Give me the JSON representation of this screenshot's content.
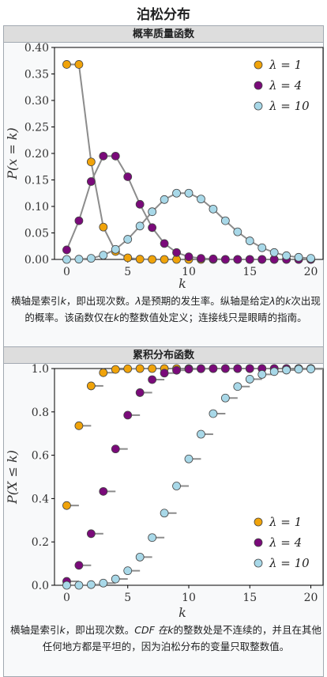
{
  "page": {
    "title": "泊松分布"
  },
  "pmf": {
    "header": "概率质量函数",
    "caption": [
      "横轴是索引",
      "k",
      "，即出现次数。",
      "λ",
      "是预期的发生率。纵轴是给定",
      "λ",
      "的",
      "k",
      "次出现的概率。该函数仅在",
      "k",
      "的整数值处定义；连接线只是眼睛的指南。"
    ]
  },
  "cdf": {
    "header": "累积分布函数",
    "caption": [
      "横轴是索引",
      "k",
      "，即出现次数。",
      "CDF 在",
      "k",
      "的整数处是不连续的，并且在其他任何地方都是平坦的，因为泊松分布的变量只取整数值。"
    ]
  },
  "chart_data": [
    {
      "type": "line",
      "ylabel": "P(x = k)",
      "xlabel": "k",
      "xlim": [
        -1,
        21
      ],
      "ylim": [
        0,
        0.4
      ],
      "xticks": [
        "0",
        "5",
        "10",
        "15",
        "20"
      ],
      "yticks": [
        "0.00",
        "0.05",
        "0.10",
        "0.15",
        "0.20",
        "0.25",
        "0.30",
        "0.35",
        "0.40"
      ],
      "legend": "top-right",
      "series": [
        {
          "name": "λ = 1",
          "color": "#f0a30a",
          "x": [
            0,
            1,
            2,
            3,
            4,
            5,
            6,
            7,
            8,
            9,
            10,
            11,
            12,
            13,
            14,
            15,
            16,
            17,
            18,
            19,
            20
          ],
          "values": [
            0.368,
            0.368,
            0.184,
            0.061,
            0.015,
            0.003,
            0.0005,
            0,
            0,
            0,
            0,
            0,
            0,
            0,
            0,
            0,
            0,
            0,
            0,
            0,
            0
          ]
        },
        {
          "name": "λ = 4",
          "color": "#7a0a7a",
          "x": [
            0,
            1,
            2,
            3,
            4,
            5,
            6,
            7,
            8,
            9,
            10,
            11,
            12,
            13,
            14,
            15,
            16,
            17,
            18,
            19,
            20
          ],
          "values": [
            0.018,
            0.073,
            0.147,
            0.195,
            0.195,
            0.156,
            0.104,
            0.06,
            0.03,
            0.013,
            0.005,
            0.002,
            0.001,
            0,
            0,
            0,
            0,
            0,
            0,
            0,
            0
          ]
        },
        {
          "name": "λ = 10",
          "color": "#a8d8e8",
          "x": [
            0,
            1,
            2,
            3,
            4,
            5,
            6,
            7,
            8,
            9,
            10,
            11,
            12,
            13,
            14,
            15,
            16,
            17,
            18,
            19,
            20
          ],
          "values": [
            0,
            0.0005,
            0.002,
            0.008,
            0.019,
            0.038,
            0.063,
            0.09,
            0.113,
            0.125,
            0.125,
            0.114,
            0.095,
            0.073,
            0.052,
            0.035,
            0.022,
            0.013,
            0.007,
            0.004,
            0.002
          ]
        }
      ]
    },
    {
      "type": "scatter",
      "ylabel": "P(X ≤ k)",
      "xlabel": "k",
      "xlim": [
        -1,
        21
      ],
      "ylim": [
        0,
        1
      ],
      "xticks": [
        "0",
        "5",
        "10",
        "15",
        "20"
      ],
      "yticks": [
        "0.0",
        "0.2",
        "0.4",
        "0.6",
        "0.8",
        "1.0"
      ],
      "legend": "bottom-right",
      "series": [
        {
          "name": "λ = 1",
          "color": "#f0a30a",
          "x": [
            0,
            1,
            2,
            3,
            4,
            5,
            6,
            7,
            8,
            9,
            10,
            11,
            12,
            13,
            14,
            15,
            16,
            17,
            18,
            19,
            20
          ],
          "values": [
            0.368,
            0.736,
            0.92,
            0.981,
            0.996,
            0.999,
            1,
            1,
            1,
            1,
            1,
            1,
            1,
            1,
            1,
            1,
            1,
            1,
            1,
            1,
            1
          ]
        },
        {
          "name": "λ = 4",
          "color": "#7a0a7a",
          "x": [
            0,
            1,
            2,
            3,
            4,
            5,
            6,
            7,
            8,
            9,
            10,
            11,
            12,
            13,
            14,
            15,
            16,
            17,
            18,
            19,
            20
          ],
          "values": [
            0.018,
            0.092,
            0.238,
            0.433,
            0.629,
            0.785,
            0.889,
            0.949,
            0.979,
            0.992,
            0.997,
            0.999,
            1,
            1,
            1,
            1,
            1,
            1,
            1,
            1,
            1
          ]
        },
        {
          "name": "λ = 10",
          "color": "#a8d8e8",
          "x": [
            0,
            1,
            2,
            3,
            4,
            5,
            6,
            7,
            8,
            9,
            10,
            11,
            12,
            13,
            14,
            15,
            16,
            17,
            18,
            19,
            20
          ],
          "values": [
            0,
            0,
            0.003,
            0.01,
            0.029,
            0.067,
            0.13,
            0.22,
            0.333,
            0.458,
            0.583,
            0.697,
            0.792,
            0.864,
            0.917,
            0.951,
            0.973,
            0.986,
            0.993,
            0.997,
            0.998
          ]
        }
      ]
    }
  ]
}
